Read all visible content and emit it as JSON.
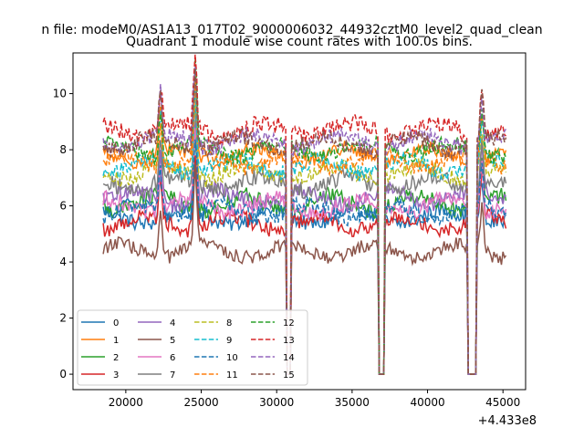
{
  "chart_data": {
    "type": "line",
    "suptitle": "n file: modeM0/AS1A13_017T02_9000006032_44932cztM0_level2_quad_clean",
    "title": "Quadrant 1 module wise count rates with 100.0s bins.",
    "xlabel": "",
    "ylabel": "",
    "x_offset_label": "+4.433e8",
    "xlim": [
      16500,
      46500
    ],
    "ylim": [
      -0.55,
      11.45
    ],
    "xticks": [
      20000,
      25000,
      30000,
      35000,
      40000,
      45000
    ],
    "xtick_labels": [
      "20000",
      "25000",
      "30000",
      "35000",
      "40000",
      "45000"
    ],
    "yticks": [
      0,
      2,
      4,
      6,
      8,
      10
    ],
    "ytick_labels": [
      "0",
      "2",
      "4",
      "6",
      "8",
      "10"
    ],
    "grid": false,
    "legend": {
      "position": "lower-left",
      "ncol": 4
    },
    "x_start": 18500,
    "x_end": 45200,
    "x_step": 100,
    "gaps": [
      {
        "x0": 30700,
        "x1": 30900
      },
      {
        "x0": 36800,
        "x1": 37100
      },
      {
        "x0": 42700,
        "x1": 43200
      }
    ],
    "gap_floor": 0,
    "flares": [
      {
        "x": 22300,
        "dy": 1.6
      },
      {
        "x": 24600,
        "dy": 2.8
      },
      {
        "x": 43600,
        "dy": 1.6
      }
    ],
    "series": [
      {
        "name": "0",
        "color": "#1f77b4",
        "dash": false,
        "level": 5.6,
        "noise": 0.28
      },
      {
        "name": "1",
        "color": "#ff7f0e",
        "dash": false,
        "level": 7.8,
        "noise": 0.25
      },
      {
        "name": "2",
        "color": "#2ca02c",
        "dash": false,
        "level": 6.1,
        "noise": 0.3
      },
      {
        "name": "3",
        "color": "#d62728",
        "dash": false,
        "level": 5.4,
        "noise": 0.28
      },
      {
        "name": "4",
        "color": "#9467bd",
        "dash": false,
        "level": 6.3,
        "noise": 0.3
      },
      {
        "name": "5",
        "color": "#8c564b",
        "dash": false,
        "level": 4.4,
        "noise": 0.25
      },
      {
        "name": "6",
        "color": "#e377c2",
        "dash": false,
        "level": 6.0,
        "noise": 0.3
      },
      {
        "name": "7",
        "color": "#7f7f7f",
        "dash": false,
        "level": 6.8,
        "noise": 0.3
      },
      {
        "name": "8",
        "color": "#bcbd22",
        "dash": true,
        "level": 7.2,
        "noise": 0.28
      },
      {
        "name": "9",
        "color": "#17becf",
        "dash": true,
        "level": 7.4,
        "noise": 0.28
      },
      {
        "name": "10",
        "color": "#1f77b4",
        "dash": true,
        "level": 5.8,
        "noise": 0.3
      },
      {
        "name": "11",
        "color": "#ff7f0e",
        "dash": true,
        "level": 7.6,
        "noise": 0.28
      },
      {
        "name": "12",
        "color": "#2ca02c",
        "dash": true,
        "level": 8.0,
        "noise": 0.3
      },
      {
        "name": "13",
        "color": "#d62728",
        "dash": true,
        "level": 8.7,
        "noise": 0.32
      },
      {
        "name": "14",
        "color": "#9467bd",
        "dash": true,
        "level": 8.3,
        "noise": 0.3
      },
      {
        "name": "15",
        "color": "#8c564b",
        "dash": true,
        "level": 8.2,
        "noise": 0.3
      }
    ]
  }
}
